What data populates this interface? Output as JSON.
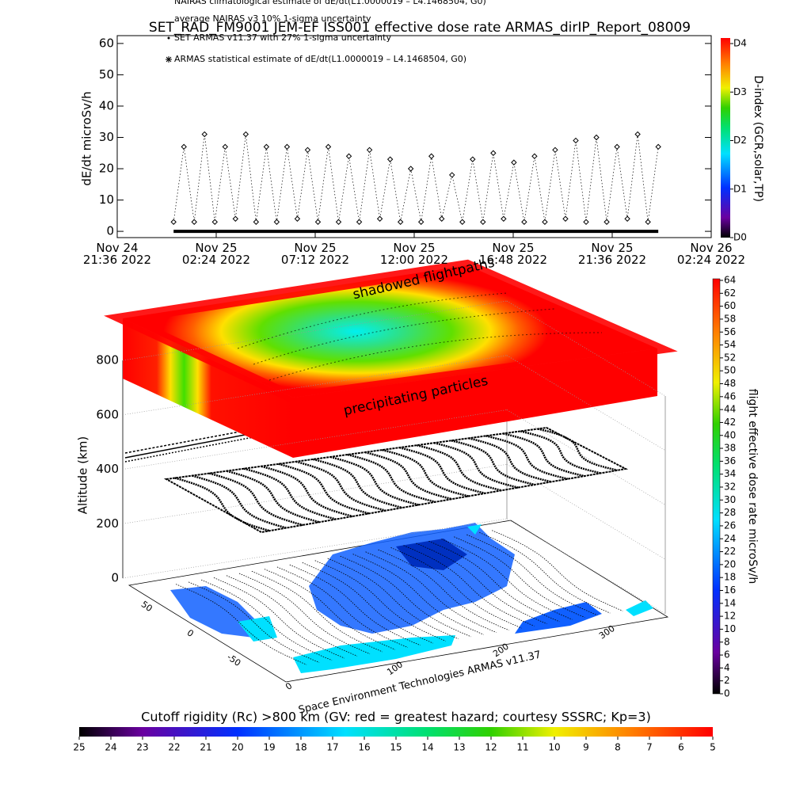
{
  "chart_data": [
    {
      "type": "scatter",
      "title": "SET_RAD_FM9001  JEM-EF ISS001 effective dose rate ARMAS_dirIP_Report_08009",
      "ylabel": "dE/dt microSv/h",
      "legend_notes": [
        "NAIRAS climatological estimate of dE/dt(L1.0000019 – L4.1468504, G0)",
        "average NAIRAS v3 10% 1-sigma uncertainty"
      ],
      "x": [
        "2022-11-25T00:20",
        "2022-11-25T00:50",
        "2022-11-25T01:20",
        "2022-11-25T01:50",
        "2022-11-25T02:20",
        "2022-11-25T02:50",
        "2022-11-25T03:20",
        "2022-11-25T03:50",
        "2022-11-25T04:20",
        "2022-11-25T04:50",
        "2022-11-25T05:20",
        "2022-11-25T05:50",
        "2022-11-25T06:20",
        "2022-11-25T06:50",
        "2022-11-25T07:20",
        "2022-11-25T07:50",
        "2022-11-25T08:20",
        "2022-11-25T08:50",
        "2022-11-25T09:20",
        "2022-11-25T09:50",
        "2022-11-25T10:20",
        "2022-11-25T10:50",
        "2022-11-25T11:20",
        "2022-11-25T11:50",
        "2022-11-25T12:20",
        "2022-11-25T12:50",
        "2022-11-25T13:20",
        "2022-11-25T13:50",
        "2022-11-25T14:20",
        "2022-11-25T14:50",
        "2022-11-25T15:20",
        "2022-11-25T15:50",
        "2022-11-25T16:20",
        "2022-11-25T16:50",
        "2022-11-25T17:20",
        "2022-11-25T17:50",
        "2022-11-25T18:20",
        "2022-11-25T18:50",
        "2022-11-25T19:20",
        "2022-11-25T19:50",
        "2022-11-25T20:20",
        "2022-11-25T20:50",
        "2022-11-25T21:20",
        "2022-11-25T21:50",
        "2022-11-25T22:20",
        "2022-11-25T22:50",
        "2022-11-25T23:20",
        "2022-11-25T23:50"
      ],
      "series": [
        {
          "name": "SET ARMAS v11.37 with 27% 1-sigma uncertainty",
          "color": "#000000",
          "values": [
            3,
            27,
            3,
            31,
            3,
            27,
            4,
            31,
            3,
            27,
            3,
            27,
            4,
            26,
            3,
            27,
            3,
            24,
            3,
            26,
            4,
            23,
            3,
            20,
            3,
            24,
            4,
            18,
            3,
            23,
            3,
            25,
            4,
            22,
            3,
            24,
            3,
            26,
            4,
            29,
            3,
            30,
            3,
            27,
            4,
            31,
            3,
            27
          ]
        },
        {
          "name": "ARMAS statistical estimate of dE/dt(L1.0000019 – L4.1468504, G0)",
          "color": "#000000",
          "values": [
            0,
            0,
            0,
            0,
            0,
            0,
            0,
            0,
            0,
            0,
            0,
            0,
            0,
            0,
            0,
            0,
            0,
            0,
            0,
            0,
            0,
            0,
            0,
            0,
            0,
            0,
            0,
            0,
            0,
            0,
            0,
            0,
            0,
            0,
            0,
            0,
            0,
            0,
            0,
            0,
            0,
            0,
            0,
            0,
            0,
            0,
            0,
            0
          ]
        }
      ],
      "xlim": [
        "2022-11-24T21:36",
        "2022-11-26T02:24"
      ],
      "xticks": [
        {
          "value": "2022-11-24T21:36",
          "label": "Nov 24\n21:36 2022"
        },
        {
          "value": "2022-11-25T02:24",
          "label": "Nov 25\n02:24 2022"
        },
        {
          "value": "2022-11-25T07:12",
          "label": "Nov 25\n07:12 2022"
        },
        {
          "value": "2022-11-25T12:00",
          "label": "Nov 25\n12:00 2022"
        },
        {
          "value": "2022-11-25T16:48",
          "label": "Nov 25\n16:48 2022"
        },
        {
          "value": "2022-11-25T21:36",
          "label": "Nov 25\n21:36 2022"
        },
        {
          "value": "2022-11-26T02:24",
          "label": "Nov 26\n02:24 2022"
        }
      ],
      "ylim": [
        -2,
        62.5
      ],
      "yticks": [
        0,
        10,
        20,
        30,
        40,
        50,
        60
      ],
      "colorbar": {
        "label": "D-index (GCR,solar,TP)",
        "lim": [
          0,
          4
        ],
        "ticks": [
          {
            "value": 0,
            "label": "D0"
          },
          {
            "value": 1,
            "label": "D1"
          },
          {
            "value": 2,
            "label": "D2"
          },
          {
            "value": 3,
            "label": "D3"
          },
          {
            "value": 4,
            "label": "D4"
          }
        ]
      }
    },
    {
      "type": "surface3d",
      "zlabel": "Altitude (km)",
      "zlim": [
        0,
        800
      ],
      "zticks": [
        0,
        200,
        400,
        600,
        800
      ],
      "latlim": [
        -90,
        90
      ],
      "latticks": [
        -50,
        0,
        50
      ],
      "lonlim": [
        0,
        360
      ],
      "lonticks": [
        0,
        100,
        200,
        300
      ],
      "annotations": [
        "shadowed flightpaths",
        "precipitating particles"
      ],
      "credit": "Space Environment Technologies ARMAS v11.37",
      "colorbar": {
        "label": "flight effective dose rate microSv/h",
        "lim": [
          0,
          64
        ],
        "ticks": [
          0,
          2,
          4,
          6,
          8,
          10,
          12,
          14,
          16,
          18,
          20,
          22,
          24,
          26,
          28,
          30,
          32,
          34,
          36,
          38,
          40,
          42,
          44,
          46,
          48,
          50,
          52,
          54,
          56,
          58,
          60,
          62,
          64
        ]
      },
      "colorbar2": {
        "label": "Cutoff rigidity (Rc) >800 km (GV: red = greatest hazard; courtesy SSSRC; Kp=3)",
        "lim": [
          25,
          5
        ],
        "ticks": [
          25,
          24,
          23,
          22,
          21,
          20,
          19,
          18,
          17,
          16,
          15,
          14,
          13,
          12,
          11,
          10,
          9,
          8,
          7,
          6,
          5
        ]
      }
    }
  ]
}
